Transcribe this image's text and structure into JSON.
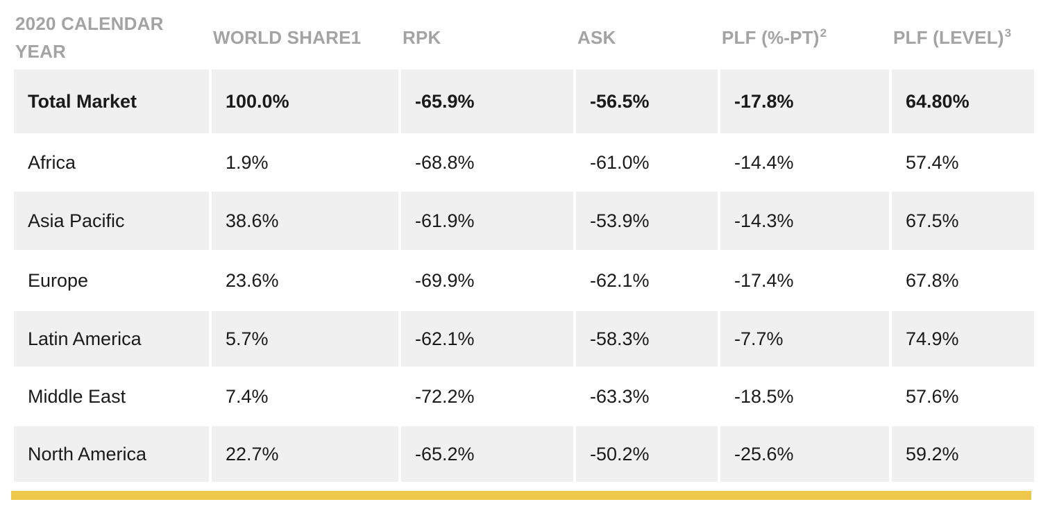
{
  "headers": [
    {
      "text": "2020 CALENDAR YEAR",
      "sup": ""
    },
    {
      "text": "WORLD SHARE1",
      "sup": ""
    },
    {
      "text": "RPK",
      "sup": ""
    },
    {
      "text": "ASK",
      "sup": ""
    },
    {
      "text": "PLF (%-PT)",
      "sup": "2"
    },
    {
      "text": "PLF (LEVEL)",
      "sup": "3"
    }
  ],
  "rows": [
    {
      "region": "Total Market",
      "world_share": "100.0%",
      "rpk": "-65.9%",
      "ask": "-56.5%",
      "plf_pt": "-17.8%",
      "plf_level": "64.80%"
    },
    {
      "region": "Africa",
      "world_share": "1.9%",
      "rpk": "-68.8%",
      "ask": "-61.0%",
      "plf_pt": "-14.4%",
      "plf_level": "57.4%"
    },
    {
      "region": "Asia Pacific",
      "world_share": "38.6%",
      "rpk": "-61.9%",
      "ask": "-53.9%",
      "plf_pt": "-14.3%",
      "plf_level": "67.5%"
    },
    {
      "region": "Europe",
      "world_share": "23.6%",
      "rpk": "-69.9%",
      "ask": "-62.1%",
      "plf_pt": "-17.4%",
      "plf_level": "67.8%"
    },
    {
      "region": "Latin America",
      "world_share": "5.7%",
      "rpk": "-62.1%",
      "ask": "-58.3%",
      "plf_pt": "-7.7%",
      "plf_level": "74.9%"
    },
    {
      "region": "Middle East",
      "world_share": "7.4%",
      "rpk": "-72.2%",
      "ask": "-63.3%",
      "plf_pt": "-18.5%",
      "plf_level": "57.6%"
    },
    {
      "region": "North America",
      "world_share": "22.7%",
      "rpk": "-65.2%",
      "ask": "-50.2%",
      "plf_pt": "-25.6%",
      "plf_level": "59.2%"
    }
  ],
  "colors": {
    "header_text": "#a3a3a3",
    "row_shade": "#f0f0f0",
    "accent": "#ecc94b"
  }
}
